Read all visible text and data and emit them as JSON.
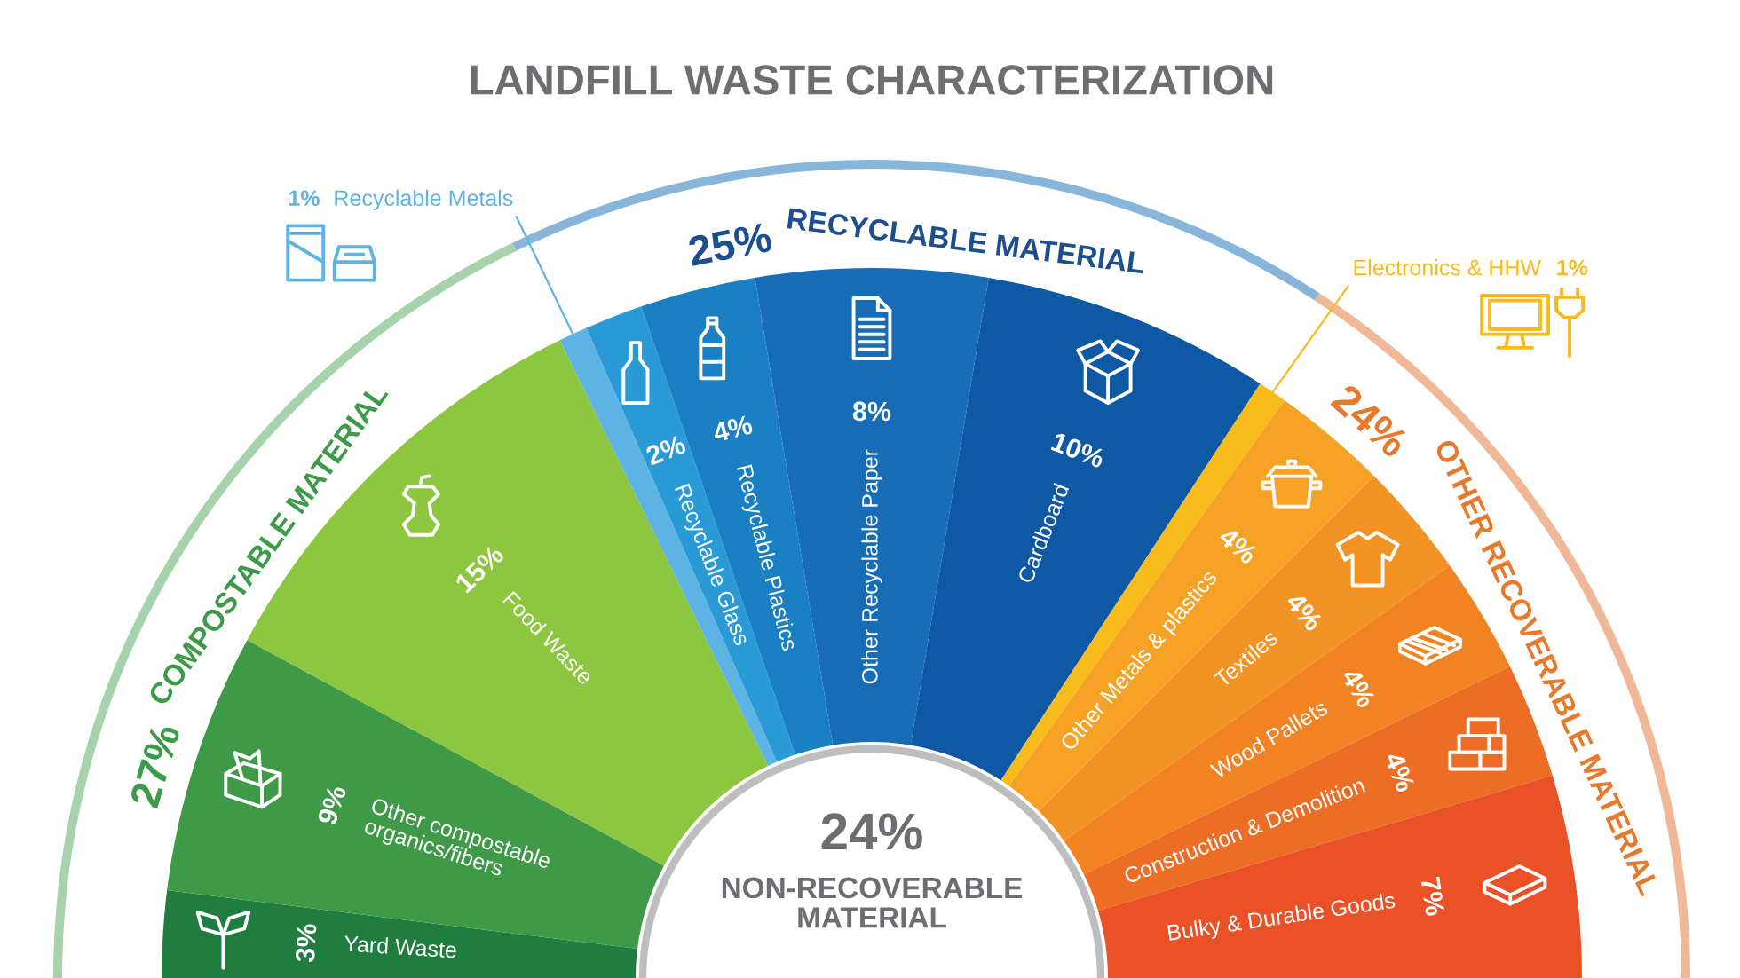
{
  "chart_data": {
    "type": "donut",
    "title": "LANDFILL WASTE CHARACTERIZATION",
    "categories": [
      "Yard Waste",
      "Other compostable\norganics/fibers",
      "Food Waste",
      "Recyclable Metals",
      "Recyclable Glass",
      "Recyclable Plastics",
      "Other Recyclable Paper",
      "Cardboard",
      "Electronics & HHW",
      "Other Metals & plastics",
      "Textiles",
      "Wood Pallets",
      "Construction & Demolition",
      "Bulky & Durable Goods"
    ],
    "values": [
      3,
      9,
      15,
      1,
      2,
      4,
      8,
      10,
      1,
      4,
      4,
      4,
      4,
      7
    ],
    "value_labels": [
      "3%",
      "9%",
      "15%",
      "1%",
      "2%",
      "4%",
      "8%",
      "10%",
      "1%",
      "4%",
      "4%",
      "4%",
      "4%",
      "7%"
    ],
    "colors": [
      "#1f7e3f",
      "#3f9a47",
      "#8dc63f",
      "#5cb3e4",
      "#2a9ad6",
      "#1a7fc3",
      "#166cb5",
      "#0f58a3",
      "#f8bb1c",
      "#f6a225",
      "#f39323",
      "#f18322",
      "#ee6d25",
      "#ea5126"
    ],
    "annotations": [
      "24%",
      "NON-RECOVERABLE\nMATERIAL",
      "27%",
      "COMPOSTABLE MATERIAL",
      "25%",
      "RECYCLABLE MATERIAL",
      "24%",
      "OTHER RECOVERABLE MATERIAL"
    ]
  }
}
